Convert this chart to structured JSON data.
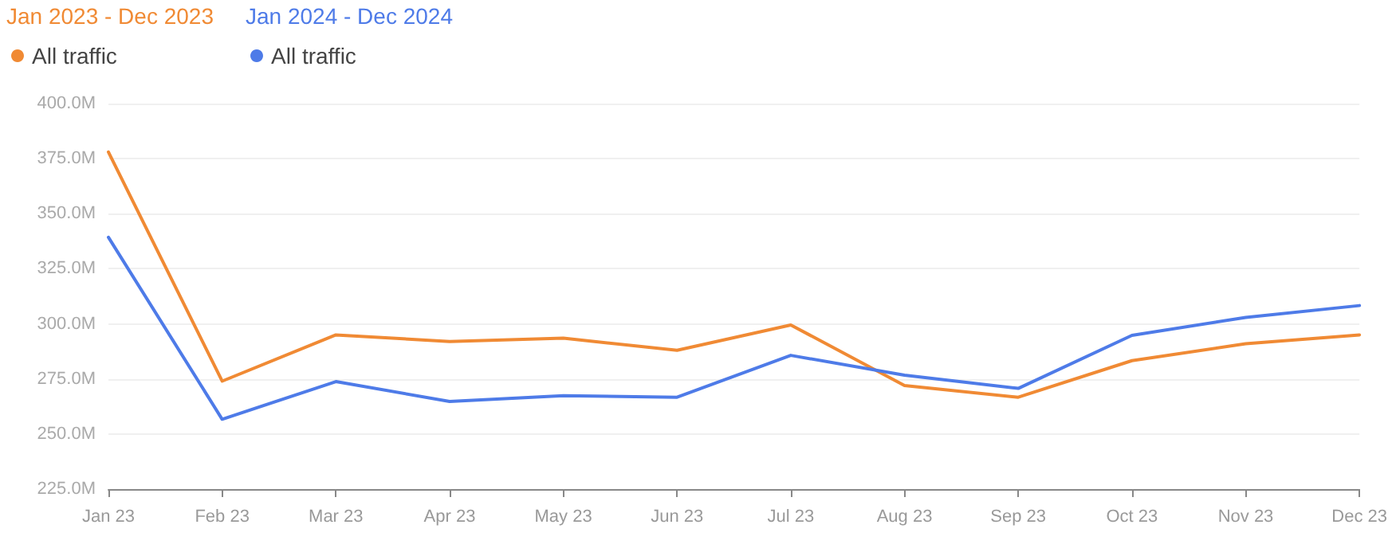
{
  "chart_data": {
    "type": "line",
    "categories": [
      "Jan 23",
      "Feb 23",
      "Mar 23",
      "Apr 23",
      "May 23",
      "Jun 23",
      "Jul 23",
      "Aug 23",
      "Sep 23",
      "Oct 23",
      "Nov 23",
      "Dec 23"
    ],
    "series": [
      {
        "name": "All traffic",
        "color": "#f08a34",
        "values": [
          378,
          274,
          295,
          292,
          293.5,
          288,
          299.5,
          272,
          266.7,
          283.3,
          291,
          295
        ]
      },
      {
        "name": "All traffic",
        "color": "#4e7be8",
        "values": [
          339.3,
          256.7,
          273.8,
          264.8,
          267.4,
          266.7,
          285.7,
          276.7,
          270.7,
          294.8,
          302.9,
          308.3
        ]
      }
    ],
    "annotations": [
      "Jan 2023 - Dec 2023",
      "Jan 2024 - Dec 2024"
    ],
    "ylim": [
      225,
      400
    ],
    "yticks": [
      {
        "value": 225,
        "label": "225.0M"
      },
      {
        "value": 250,
        "label": "250.0M"
      },
      {
        "value": 275,
        "label": "275.0M"
      },
      {
        "value": 300,
        "label": "300.0M"
      },
      {
        "value": 325,
        "label": "325.0M"
      },
      {
        "value": 350,
        "label": "350.0M"
      },
      {
        "value": 375,
        "label": "375.0M"
      },
      {
        "value": 400,
        "label": "400.0M"
      }
    ],
    "grid": "y",
    "legend": "top left",
    "marker": "none",
    "line_style": "solid"
  }
}
